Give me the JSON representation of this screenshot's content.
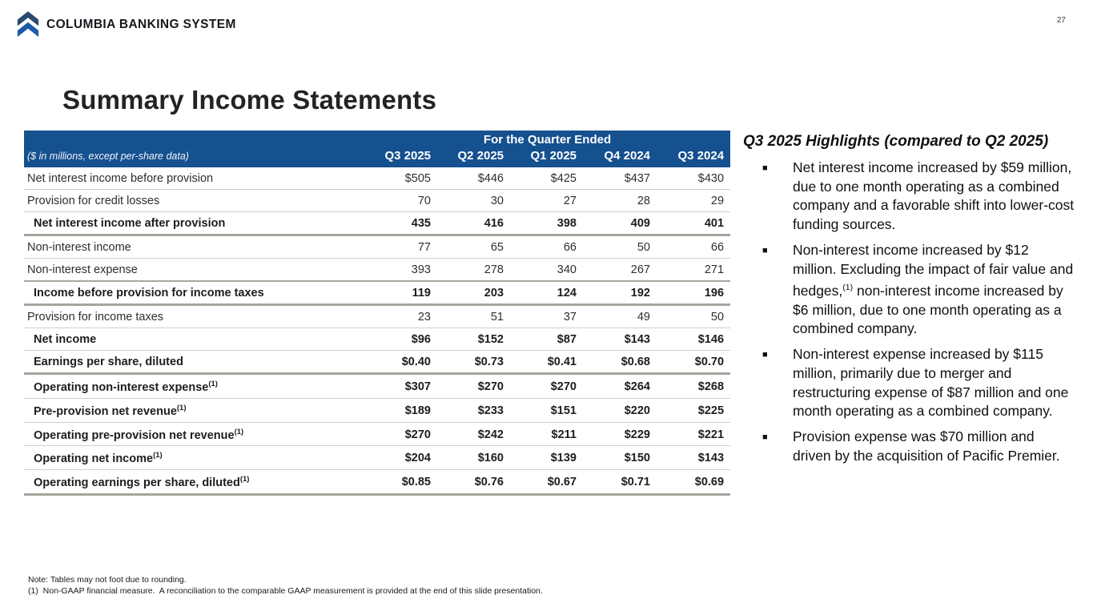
{
  "page": {
    "number": "27"
  },
  "brand": {
    "name": "COLUMBIA BANKING SYSTEM",
    "logo_color_top": "#2b4a6f",
    "logo_color_bottom": "#1e5ba6"
  },
  "title": "Summary Income Statements",
  "table": {
    "header_bg": "#15508f",
    "group_header": "For the Quarter Ended",
    "unit_note": "($ in millions, except per-share data)",
    "columns": [
      "Q3 2025",
      "Q2 2025",
      "Q1 2025",
      "Q4 2024",
      "Q3 2024"
    ],
    "rows": [
      {
        "label": "Net interest income before provision",
        "sup": "",
        "values": [
          "$505",
          "$446",
          "$425",
          "$437",
          "$430"
        ],
        "bold": false,
        "strong_top": false,
        "strong_bottom": false
      },
      {
        "label": "Provision for credit losses",
        "sup": "",
        "values": [
          "70",
          "30",
          "27",
          "28",
          "29"
        ],
        "bold": false,
        "strong_top": false,
        "strong_bottom": false
      },
      {
        "label": "Net interest income after provision",
        "sup": "",
        "values": [
          "435",
          "416",
          "398",
          "409",
          "401"
        ],
        "bold": true,
        "strong_top": false,
        "strong_bottom": true
      },
      {
        "label": "Non-interest income",
        "sup": "",
        "values": [
          "77",
          "65",
          "66",
          "50",
          "66"
        ],
        "bold": false,
        "strong_top": false,
        "strong_bottom": false
      },
      {
        "label": "Non-interest expense",
        "sup": "",
        "values": [
          "393",
          "278",
          "340",
          "267",
          "271"
        ],
        "bold": false,
        "strong_top": false,
        "strong_bottom": false
      },
      {
        "label": "Income before provision for income taxes",
        "sup": "",
        "values": [
          "119",
          "203",
          "124",
          "192",
          "196"
        ],
        "bold": true,
        "strong_top": true,
        "strong_bottom": true
      },
      {
        "label": "Provision for income taxes",
        "sup": "",
        "values": [
          "23",
          "51",
          "37",
          "49",
          "50"
        ],
        "bold": false,
        "strong_top": false,
        "strong_bottom": false
      },
      {
        "label": "Net income",
        "sup": "",
        "values": [
          "$96",
          "$152",
          "$87",
          "$143",
          "$146"
        ],
        "bold": true,
        "strong_top": false,
        "strong_bottom": false
      },
      {
        "label": "Earnings per share, diluted",
        "sup": "",
        "values": [
          "$0.40",
          "$0.73",
          "$0.41",
          "$0.68",
          "$0.70"
        ],
        "bold": true,
        "strong_top": false,
        "strong_bottom": true
      },
      {
        "label": "Operating non-interest expense",
        "sup": "(1)",
        "values": [
          "$307",
          "$270",
          "$270",
          "$264",
          "$268"
        ],
        "bold": true,
        "strong_top": false,
        "strong_bottom": false
      },
      {
        "label": "Pre-provision net revenue",
        "sup": "(1)",
        "values": [
          "$189",
          "$233",
          "$151",
          "$220",
          "$225"
        ],
        "bold": true,
        "strong_top": false,
        "strong_bottom": false
      },
      {
        "label": "Operating pre-provision net revenue",
        "sup": "(1)",
        "values": [
          "$270",
          "$242",
          "$211",
          "$229",
          "$221"
        ],
        "bold": true,
        "strong_top": false,
        "strong_bottom": false
      },
      {
        "label": "Operating net income",
        "sup": "(1)",
        "values": [
          "$204",
          "$160",
          "$139",
          "$150",
          "$143"
        ],
        "bold": true,
        "strong_top": false,
        "strong_bottom": false
      },
      {
        "label": "Operating earnings per share, diluted",
        "sup": "(1)",
        "values": [
          "$0.85",
          "$0.76",
          "$0.67",
          "$0.71",
          "$0.69"
        ],
        "bold": true,
        "strong_top": false,
        "strong_bottom": true
      }
    ]
  },
  "highlights": {
    "heading": "Q3 2025 Highlights (compared to Q2 2025)",
    "bullets": [
      {
        "pre": "Net interest income increased by $59 million, due to one month operating as a combined company and a favorable shift into lower-cost funding sources.",
        "sup": "",
        "post": ""
      },
      {
        "pre": "Non-interest income increased by $12 million. Excluding the impact of fair value and hedges,",
        "sup": "(1)",
        "post": " non-interest income increased by $6 million, due to one month operating as a combined company."
      },
      {
        "pre": "Non-interest expense increased by $115 million, primarily due to merger and restructuring expense of $87 million and one month operating as a combined company.",
        "sup": "",
        "post": ""
      },
      {
        "pre": "Provision expense was $70 million and driven by the acquisition of Pacific Premier.",
        "sup": "",
        "post": ""
      }
    ]
  },
  "footnotes": [
    "Note: Tables may not foot due to rounding.",
    "(1)  Non-GAAP financial measure.  A reconciliation to the comparable GAAP measurement is provided at the end of this slide presentation."
  ]
}
